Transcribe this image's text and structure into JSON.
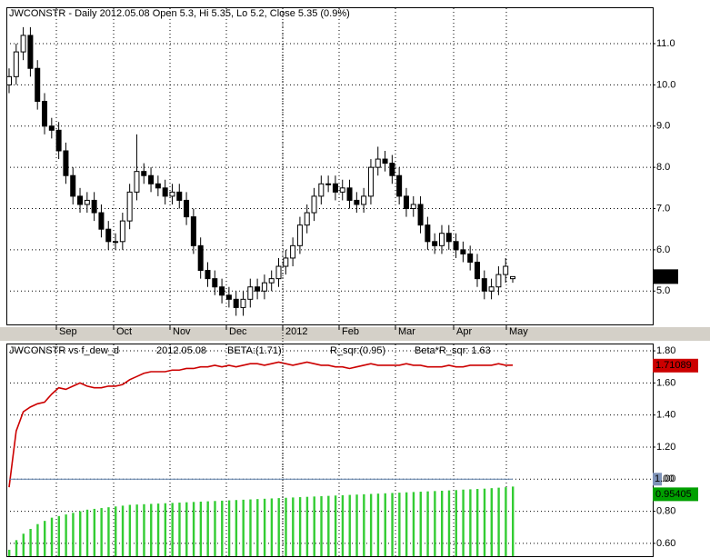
{
  "chart_data": [
    {
      "type": "candlestick",
      "title": "JWCONSTR - Daily 2012.05.08 Open 5.3, Hi 5.35, Lo 5.2, Close 5.35 (0.9%)",
      "xtick_labels": [
        "Sep",
        "Oct",
        "Nov",
        "Dec",
        "2012",
        "Feb",
        "Mar",
        "Apr",
        "May"
      ],
      "open": [
        10.0,
        10.2,
        10.8,
        11.2,
        10.4,
        9.6,
        9.0,
        8.9,
        8.4,
        7.8,
        7.3,
        7.1,
        7.2,
        6.9,
        6.5,
        6.2,
        6.2,
        6.7,
        7.4,
        7.9,
        7.8,
        7.6,
        7.5,
        7.3,
        7.4,
        7.2,
        6.8,
        6.1,
        5.5,
        5.3,
        5.1,
        4.9,
        4.8,
        4.6,
        4.8,
        5.1,
        5.0,
        5.2,
        5.3,
        5.6,
        5.8,
        6.1,
        6.6,
        6.9,
        7.3,
        7.6,
        7.6,
        7.4,
        7.5,
        7.2,
        7.1,
        7.3,
        8.0,
        8.2,
        8.1,
        7.8,
        7.3,
        7.0,
        7.1,
        6.6,
        6.2,
        6.1,
        6.4,
        6.2,
        6.0,
        5.9,
        5.7,
        5.3,
        5.0,
        5.1,
        5.4,
        5.3
      ],
      "high": [
        10.4,
        11.0,
        11.4,
        11.4,
        10.6,
        9.8,
        9.2,
        9.1,
        8.6,
        8.0,
        7.5,
        7.4,
        7.4,
        7.1,
        6.7,
        6.4,
        6.9,
        7.6,
        8.8,
        8.1,
        8.0,
        7.8,
        7.7,
        7.6,
        7.6,
        7.4,
        7.0,
        6.3,
        5.7,
        5.5,
        5.3,
        5.1,
        5.0,
        5.0,
        5.3,
        5.3,
        5.4,
        5.5,
        5.8,
        6.0,
        6.3,
        6.8,
        7.1,
        7.5,
        7.8,
        7.8,
        7.8,
        7.7,
        7.7,
        7.4,
        7.5,
        8.2,
        8.5,
        8.4,
        8.3,
        8.0,
        7.5,
        7.3,
        7.3,
        6.8,
        6.4,
        6.6,
        6.6,
        6.4,
        6.2,
        6.1,
        5.9,
        5.5,
        5.3,
        5.6,
        5.8,
        5.35
      ],
      "low": [
        9.8,
        10.0,
        10.6,
        10.2,
        9.4,
        8.8,
        8.7,
        8.2,
        7.6,
        7.1,
        6.9,
        6.9,
        6.7,
        6.3,
        6.0,
        6.0,
        6.0,
        6.5,
        7.2,
        7.6,
        7.4,
        7.3,
        7.1,
        7.1,
        7.0,
        6.6,
        5.9,
        5.3,
        5.1,
        4.9,
        4.7,
        4.6,
        4.4,
        4.4,
        4.6,
        4.8,
        4.8,
        5.0,
        5.1,
        5.4,
        5.6,
        5.9,
        6.4,
        6.7,
        7.1,
        7.4,
        7.2,
        7.2,
        7.0,
        6.9,
        6.9,
        7.1,
        7.8,
        7.9,
        7.6,
        7.1,
        6.8,
        6.8,
        6.4,
        6.0,
        5.9,
        5.9,
        6.0,
        5.8,
        5.7,
        5.5,
        5.1,
        4.8,
        4.8,
        4.9,
        5.2,
        5.2
      ],
      "close": [
        10.2,
        10.8,
        11.2,
        10.4,
        9.6,
        9.0,
        8.9,
        8.4,
        7.8,
        7.3,
        7.1,
        7.2,
        6.9,
        6.5,
        6.2,
        6.2,
        6.7,
        7.4,
        7.9,
        7.8,
        7.6,
        7.5,
        7.3,
        7.4,
        7.2,
        6.8,
        6.1,
        5.5,
        5.3,
        5.1,
        4.9,
        4.8,
        4.6,
        4.8,
        5.1,
        5.0,
        5.2,
        5.3,
        5.6,
        5.8,
        6.1,
        6.6,
        6.9,
        7.3,
        7.6,
        7.6,
        7.4,
        7.5,
        7.2,
        7.1,
        7.3,
        8.0,
        8.2,
        8.1,
        7.8,
        7.3,
        7.0,
        7.1,
        6.6,
        6.2,
        6.1,
        6.4,
        6.2,
        6.0,
        5.9,
        5.7,
        5.3,
        5.0,
        5.1,
        5.4,
        5.6,
        5.35
      ],
      "up_color": "#ffffff",
      "down_color": "#000000",
      "ylim": [
        4.19,
        11.86
      ],
      "yticks": [
        {
          "value": 5,
          "label": "5.0"
        },
        {
          "value": 6,
          "label": "6.0"
        },
        {
          "value": 7,
          "label": "7.0"
        },
        {
          "value": 8,
          "label": "8.0"
        },
        {
          "value": 9,
          "label": "9.0"
        },
        {
          "value": 10,
          "label": "10.0"
        },
        {
          "value": 11,
          "label": "11.0"
        }
      ],
      "grid": true
    },
    {
      "type": "combo",
      "title": "JWCONSTR  vs  f_dew_d",
      "subtitle": "2012.05.08",
      "series": [
        {
          "name": "BETA:(1.71)",
          "kind": "line",
          "color": "#cc0000",
          "values": [
            0.95,
            1.3,
            1.42,
            1.45,
            1.47,
            1.48,
            1.53,
            1.57,
            1.56,
            1.58,
            1.6,
            1.58,
            1.57,
            1.57,
            1.58,
            1.58,
            1.59,
            1.62,
            1.64,
            1.66,
            1.67,
            1.67,
            1.67,
            1.68,
            1.68,
            1.69,
            1.69,
            1.7,
            1.7,
            1.71,
            1.7,
            1.71,
            1.7,
            1.71,
            1.72,
            1.72,
            1.71,
            1.72,
            1.73,
            1.72,
            1.71,
            1.72,
            1.73,
            1.72,
            1.71,
            1.71,
            1.7,
            1.7,
            1.69,
            1.7,
            1.71,
            1.72,
            1.71,
            1.71,
            1.71,
            1.71,
            1.72,
            1.71,
            1.71,
            1.7,
            1.7,
            1.7,
            1.71,
            1.7,
            1.7,
            1.71,
            1.71,
            1.71,
            1.71,
            1.72,
            1.71,
            1.71089
          ]
        },
        {
          "name": "R_sqr:(0.95)",
          "kind": "bar",
          "color": "#33cc33",
          "values": [
            0.56,
            0.62,
            0.66,
            0.69,
            0.72,
            0.74,
            0.76,
            0.77,
            0.78,
            0.79,
            0.8,
            0.81,
            0.815,
            0.82,
            0.825,
            0.83,
            0.835,
            0.84,
            0.842,
            0.844,
            0.846,
            0.848,
            0.85,
            0.852,
            0.854,
            0.856,
            0.858,
            0.86,
            0.862,
            0.864,
            0.866,
            0.868,
            0.87,
            0.872,
            0.874,
            0.876,
            0.878,
            0.88,
            0.882,
            0.884,
            0.886,
            0.888,
            0.89,
            0.892,
            0.894,
            0.896,
            0.898,
            0.9,
            0.902,
            0.904,
            0.906,
            0.908,
            0.91,
            0.912,
            0.914,
            0.916,
            0.918,
            0.92,
            0.922,
            0.924,
            0.926,
            0.928,
            0.93,
            0.932,
            0.935,
            0.937,
            0.939,
            0.941,
            0.944,
            0.947,
            0.95,
            0.95405
          ]
        },
        {
          "name": "Beta*R_sqr:  1.63",
          "kind": "hline",
          "color": "#3344cc",
          "label_color": "#7f93b8",
          "values": [
            1
          ],
          "value_labels": [
            "1.00"
          ]
        }
      ],
      "ylim": [
        0.52,
        1.84
      ],
      "yticks": [
        {
          "value": 0.6,
          "label": "0.60"
        },
        {
          "value": 0.8,
          "label": "0.80"
        },
        {
          "value": 1,
          "label": "1.00"
        },
        {
          "value": 1.2,
          "label": "1.20"
        },
        {
          "value": 1.4,
          "label": "1.40"
        },
        {
          "value": 1.6,
          "label": "1.60"
        },
        {
          "value": 1.8,
          "label": "1.80"
        }
      ],
      "grid": true
    }
  ]
}
